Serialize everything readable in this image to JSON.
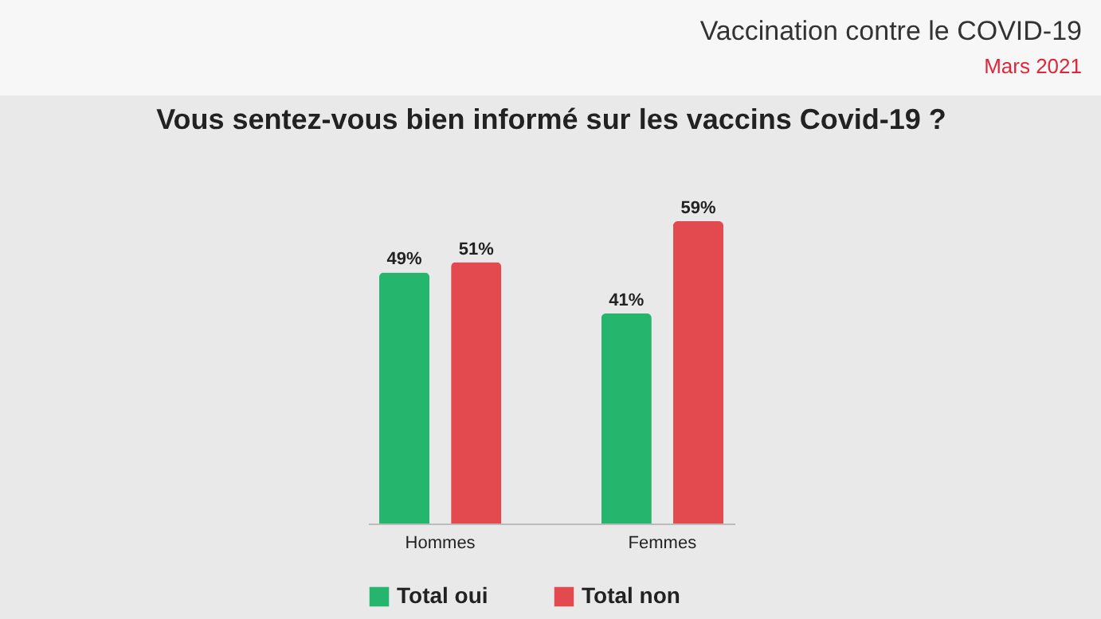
{
  "chart_data": {
    "type": "bar",
    "title": "Vous sentez-vous bien informé sur les vaccins Covid-19 ?",
    "annotations": [
      "Vaccination contre le COVID-19",
      "Mars 2021"
    ],
    "categories": [
      "Hommes",
      "Femmes"
    ],
    "series": [
      {
        "name": "Total oui",
        "color": "#25b56d",
        "values": [
          49,
          41
        ],
        "value_labels": [
          "49%",
          "41%"
        ]
      },
      {
        "name": "Total non",
        "color": "#e24a50",
        "values": [
          51,
          59
        ],
        "value_labels": [
          "51%",
          "59%"
        ]
      }
    ],
    "legend": "bottom",
    "grid": false
  }
}
